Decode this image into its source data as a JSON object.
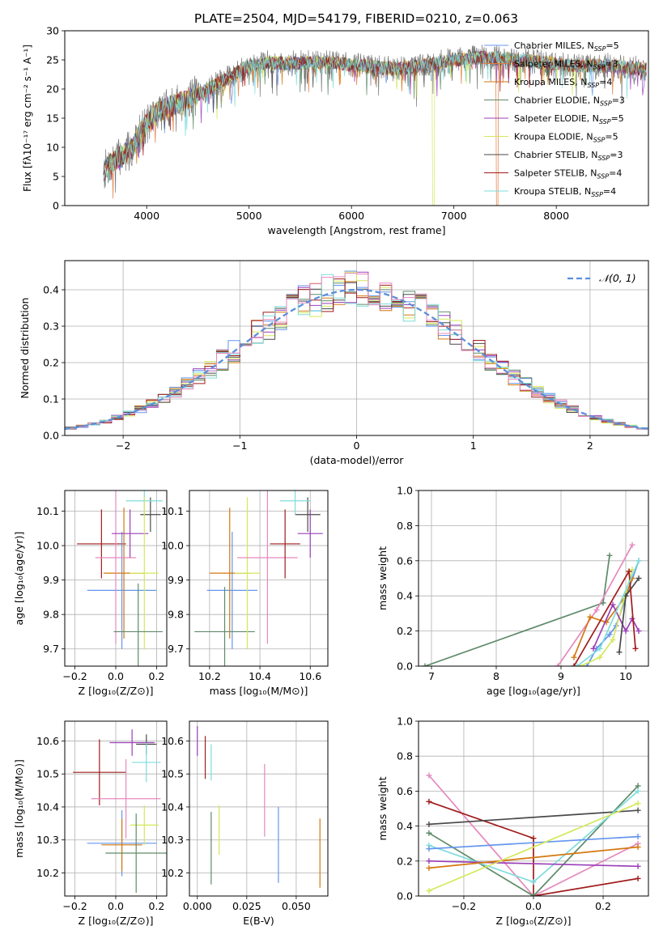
{
  "title": "PLATE=2504, MJD=54179, FIBERID=0210, z=0.063",
  "colors": {
    "Chabrier MILES": "#6495ed",
    "Salpeter MILES": "#e07b3c",
    "Kroupa MILES": "#d4780f",
    "Chabrier ELODIE": "#5f8a68",
    "Salpeter ELODIE": "#9b3fb8",
    "Kroupa ELODIE": "#d4e85a",
    "Chabrier STELIB": "#4a4a4a",
    "Salpeter STELIB": "#a01c1c",
    "Kroupa STELIB": "#7fdcdc",
    "gauss": "#5b8fdb",
    "pink": "#e688bd"
  },
  "chart_data": [
    {
      "type": "line",
      "panel": "spectrum",
      "title": "PLATE=2504, MJD=54179, FIBERID=0210, z=0.063",
      "xlabel": "wavelength [Angstrom, rest frame]",
      "ylabel": "Flux [fλ10⁻¹⁷ erg cm⁻² s⁻¹ A⁻¹]",
      "xlim": [
        3200,
        8900
      ],
      "ylim": [
        0,
        30
      ],
      "xticks": [
        "4000",
        "5000",
        "6000",
        "7000",
        "8000"
      ],
      "yticks": [
        "0",
        "5",
        "10",
        "15",
        "20",
        "25",
        "30"
      ],
      "legend_position": "upper-right",
      "legend": [
        {
          "series": "Chabrier MILES",
          "pre": "Chabrier MILES, N",
          "sub": "SSP",
          "post": "=5"
        },
        {
          "series": "Salpeter MILES",
          "pre": "Salpeter MILES, N",
          "sub": "SSP",
          "post": "=3"
        },
        {
          "series": "Kroupa MILES",
          "pre": "Kroupa MILES, N",
          "sub": "SSP",
          "post": "=4"
        },
        {
          "series": "Chabrier ELODIE",
          "pre": "Chabrier ELODIE, N",
          "sub": "SSP",
          "post": "=3"
        },
        {
          "series": "Salpeter ELODIE",
          "pre": "Salpeter ELODIE, N",
          "sub": "SSP",
          "post": "=5"
        },
        {
          "series": "Kroupa ELODIE",
          "pre": "Kroupa ELODIE, N",
          "sub": "SSP",
          "post": "=5"
        },
        {
          "series": "Chabrier STELIB",
          "pre": "Chabrier STELIB, N",
          "sub": "SSP",
          "post": "=3"
        },
        {
          "series": "Salpeter STELIB",
          "pre": "Salpeter STELIB, N",
          "sub": "SSP",
          "post": "=4"
        },
        {
          "series": "Kroupa STELIB",
          "pre": "Kroupa STELIB, N",
          "sub": "SSP",
          "post": "=4"
        }
      ],
      "continuum": {
        "x": [
          3580,
          3700,
          3850,
          3950,
          4100,
          4300,
          4500,
          4700,
          5000,
          5200,
          5500,
          5800,
          6100,
          6400,
          6700,
          7000,
          7300,
          7600,
          7900,
          8200,
          8500,
          8800
        ],
        "y": [
          6,
          8,
          9.5,
          13,
          16,
          17.5,
          19,
          21,
          24,
          24.5,
          24.5,
          24.5,
          24,
          23.5,
          24,
          25,
          25.5,
          25,
          24.5,
          24,
          24,
          23.5
        ]
      },
      "data_range": [
        3580,
        8880
      ],
      "dips": [
        {
          "series": "Kroupa ELODIE",
          "x": 6800,
          "y": 0
        },
        {
          "series": "Salpeter MILES",
          "x": 7420,
          "y": 0
        }
      ]
    },
    {
      "type": "line",
      "panel": "residuals",
      "xlabel": "(data-model)/error",
      "ylabel": "Normed distribution",
      "xlim": [
        -2.5,
        2.5
      ],
      "ylim": [
        0,
        0.48
      ],
      "xticks": [
        "−2",
        "−1",
        "0",
        "1",
        "2"
      ],
      "yticks": [
        "0.0",
        "0.1",
        "0.2",
        "0.3",
        "0.4"
      ],
      "grid": true,
      "legend_position": "upper-right",
      "legend": [
        {
          "label": "𝒩(0, 1)",
          "series": "gauss",
          "style": "dashed"
        }
      ],
      "bin_width": 0.1,
      "peak_density": 0.4
    },
    {
      "type": "scatter",
      "panel": "age-vs-Z",
      "xlabel": "Z [log₁₀(Z/Z⊙)]",
      "ylabel": "age [log₁₀(age/yr)]",
      "xlim": [
        -0.25,
        0.25
      ],
      "ylim": [
        9.65,
        10.16
      ],
      "xticks": [
        "−0.2",
        "0.0",
        "0.2"
      ],
      "yticks": [
        "9.7",
        "9.8",
        "9.9",
        "10.0",
        "10.1"
      ],
      "grid": true,
      "points": [
        {
          "series": "Salpeter STELIB",
          "x": -0.07,
          "xerr": 0.12,
          "y": 10.005,
          "yerr": 0.1
        },
        {
          "series": "Chabrier MILES",
          "x": 0.03,
          "xerr": 0.17,
          "y": 9.87,
          "yerr": 0.17
        },
        {
          "series": "Kroupa MILES",
          "x": 0.04,
          "xerr": 0.1,
          "y": 9.92,
          "yerr": 0.19
        },
        {
          "series": "pink",
          "x": 0.0,
          "xerr": 0.1,
          "y": 9.965,
          "yerr": 0.25
        },
        {
          "series": "Salpeter ELODIE",
          "x": 0.07,
          "xerr": 0.09,
          "y": 10.035,
          "yerr": 0.07
        },
        {
          "series": "Chabrier STELIB",
          "x": 0.17,
          "xerr": 0.05,
          "y": 10.09,
          "yerr": 0.05
        },
        {
          "series": "Kroupa STELIB",
          "x": 0.14,
          "xerr": 0.09,
          "y": 10.13,
          "yerr": 0.04
        },
        {
          "series": "Kroupa ELODIE",
          "x": 0.14,
          "xerr": 0.07,
          "y": 9.92,
          "yerr": 0.22
        },
        {
          "series": "Chabrier ELODIE",
          "x": 0.11,
          "xerr": 0.12,
          "y": 9.75,
          "yerr": 0.14
        }
      ]
    },
    {
      "type": "scatter",
      "panel": "age-vs-mass",
      "xlabel": "mass [log₁₀(M/M⊙)]",
      "ylabel": "",
      "xlim": [
        10.12,
        10.67
      ],
      "ylim": [
        9.65,
        10.16
      ],
      "xticks": [
        "10.2",
        "10.4",
        "10.6"
      ],
      "yticks": [
        "9.7",
        "9.8",
        "9.9",
        "10.0",
        "10.1"
      ],
      "grid": true,
      "points": [
        {
          "series": "Chabrier MILES",
          "x": 10.29,
          "xerr": 0.1,
          "y": 9.87,
          "yerr": 0.17
        },
        {
          "series": "Kroupa MILES",
          "x": 10.28,
          "xerr": 0.08,
          "y": 9.92,
          "yerr": 0.19
        },
        {
          "series": "Chabrier ELODIE",
          "x": 10.26,
          "xerr": 0.12,
          "y": 9.75,
          "yerr": 0.13
        },
        {
          "series": "Kroupa ELODIE",
          "x": 10.35,
          "xerr": 0.05,
          "y": 9.92,
          "yerr": 0.22
        },
        {
          "series": "pink",
          "x": 10.43,
          "xerr": 0.12,
          "y": 9.965,
          "yerr": 0.25
        },
        {
          "series": "Salpeter STELIB",
          "x": 10.5,
          "xerr": 0.06,
          "y": 10.005,
          "yerr": 0.1
        },
        {
          "series": "Salpeter ELODIE",
          "x": 10.6,
          "xerr": 0.05,
          "y": 10.035,
          "yerr": 0.07
        },
        {
          "series": "Chabrier STELIB",
          "x": 10.59,
          "xerr": 0.05,
          "y": 10.09,
          "yerr": 0.05
        },
        {
          "series": "Kroupa STELIB",
          "x": 10.54,
          "xerr": 0.06,
          "y": 10.13,
          "yerr": 0.04
        }
      ]
    },
    {
      "type": "line",
      "panel": "mass-weight-vs-age",
      "xlabel": "age [log₁₀(age/yr)]",
      "ylabel": "mass weight",
      "xlim": [
        6.8,
        10.35
      ],
      "ylim": [
        0,
        1
      ],
      "xticks": [
        "7",
        "8",
        "9",
        "10"
      ],
      "yticks": [
        "0.0",
        "0.2",
        "0.4",
        "0.6",
        "0.8",
        "1.0"
      ],
      "grid": true,
      "series": [
        {
          "name": "Chabrier ELODIE",
          "points": [
            [
              6.9,
              0.0
            ],
            [
              9.65,
              0.36
            ],
            [
              9.75,
              0.63
            ]
          ]
        },
        {
          "name": "pink",
          "points": [
            [
              8.95,
              0.0
            ],
            [
              9.55,
              0.32
            ],
            [
              10.1,
              0.69
            ]
          ]
        },
        {
          "name": "Chabrier MILES",
          "points": [
            [
              9.4,
              0.0
            ],
            [
              9.55,
              0.1
            ],
            [
              9.75,
              0.18
            ],
            [
              9.85,
              0.23
            ],
            [
              10.2,
              0.6
            ]
          ]
        },
        {
          "name": "Kroupa MILES",
          "points": [
            [
              9.2,
              0.05
            ],
            [
              9.45,
              0.28
            ],
            [
              9.7,
              0.25
            ],
            [
              10.0,
              0.4
            ],
            [
              10.1,
              0.5
            ]
          ]
        },
        {
          "name": "Kroupa ELODIE",
          "points": [
            [
              9.3,
              0.0
            ],
            [
              9.6,
              0.05
            ],
            [
              9.8,
              0.15
            ],
            [
              10.1,
              0.55
            ]
          ]
        },
        {
          "name": "Salpeter ELODIE",
          "points": [
            [
              9.5,
              0.1
            ],
            [
              9.8,
              0.35
            ],
            [
              10.0,
              0.2
            ],
            [
              10.1,
              0.27
            ],
            [
              10.2,
              0.2
            ]
          ]
        },
        {
          "name": "Chabrier STELIB",
          "points": [
            [
              9.9,
              0.08
            ],
            [
              10.0,
              0.4
            ],
            [
              10.2,
              0.5
            ]
          ]
        },
        {
          "name": "Salpeter STELIB",
          "points": [
            [
              9.2,
              0.0
            ],
            [
              10.05,
              0.54
            ],
            [
              10.15,
              0.1
            ]
          ]
        },
        {
          "name": "Kroupa STELIB",
          "points": [
            [
              9.25,
              0.0
            ],
            [
              9.6,
              0.1
            ],
            [
              10.2,
              0.6
            ]
          ]
        }
      ]
    },
    {
      "type": "scatter",
      "panel": "mass-vs-Z",
      "xlabel": "Z [log₁₀(Z/Z⊙)]",
      "ylabel": "mass [log₁₀(M/M⊙)]",
      "xlim": [
        -0.25,
        0.25
      ],
      "ylim": [
        10.13,
        10.66
      ],
      "xticks": [
        "−0.2",
        "0.0",
        "0.2"
      ],
      "yticks": [
        "10.2",
        "10.3",
        "10.4",
        "10.5",
        "10.6"
      ],
      "grid": true,
      "points": [
        {
          "series": "Salpeter STELIB",
          "x": -0.08,
          "xerr": 0.13,
          "y": 10.505,
          "yerr": 0.1
        },
        {
          "series": "Chabrier MILES",
          "x": 0.03,
          "xerr": 0.17,
          "y": 10.29,
          "yerr": 0.1
        },
        {
          "series": "Kroupa MILES",
          "x": 0.03,
          "xerr": 0.1,
          "y": 10.285,
          "yerr": 0.08
        },
        {
          "series": "pink",
          "x": 0.05,
          "xerr": 0.17,
          "y": 10.425,
          "yerr": 0.12
        },
        {
          "series": "Kroupa ELODIE",
          "x": 0.14,
          "xerr": 0.07,
          "y": 10.345,
          "yerr": 0.06
        },
        {
          "series": "Chabrier ELODIE",
          "x": 0.1,
          "xerr": 0.15,
          "y": 10.26,
          "yerr": 0.12
        },
        {
          "series": "Salpeter ELODIE",
          "x": 0.08,
          "xerr": 0.11,
          "y": 10.595,
          "yerr": 0.04
        },
        {
          "series": "Chabrier STELIB",
          "x": 0.15,
          "xerr": 0.05,
          "y": 10.59,
          "yerr": 0.03
        },
        {
          "series": "Kroupa STELIB",
          "x": 0.15,
          "xerr": 0.07,
          "y": 10.535,
          "yerr": 0.06
        }
      ]
    },
    {
      "type": "scatter",
      "panel": "mass-vs-EBV",
      "xlabel": "E(B-V)",
      "ylabel": "",
      "xlim": [
        -0.004,
        0.066
      ],
      "ylim": [
        10.13,
        10.66
      ],
      "xticks": [
        "0.000",
        "0.025",
        "0.050"
      ],
      "yticks": [
        "10.2",
        "10.3",
        "10.4",
        "10.5",
        "10.6"
      ],
      "grid": true,
      "points": [
        {
          "series": "Salpeter ELODIE",
          "x": 0.0,
          "y": 10.6,
          "yerr": 0.045
        },
        {
          "series": "Salpeter STELIB",
          "x": 0.004,
          "y": 10.55,
          "yerr": 0.065
        },
        {
          "series": "Kroupa STELIB",
          "x": 0.007,
          "y": 10.535,
          "yerr": 0.055
        },
        {
          "series": "Chabrier ELODIE",
          "x": 0.007,
          "y": 10.275,
          "yerr": 0.11
        },
        {
          "series": "Kroupa ELODIE",
          "x": 0.011,
          "y": 10.33,
          "yerr": 0.075
        },
        {
          "series": "pink",
          "x": 0.034,
          "y": 10.42,
          "yerr": 0.11
        },
        {
          "series": "Chabrier MILES",
          "x": 0.041,
          "y": 10.285,
          "yerr": 0.115
        },
        {
          "series": "Kroupa MILES",
          "x": 0.062,
          "y": 10.26,
          "yerr": 0.105
        }
      ]
    },
    {
      "type": "line",
      "panel": "mass-weight-vs-Z",
      "xlabel": "Z [log₁₀(Z/Z⊙)]",
      "ylabel": "mass weight",
      "xlim": [
        -0.33,
        0.33
      ],
      "ylim": [
        0,
        1
      ],
      "xticks": [
        "−0.2",
        "0.0",
        "0.2"
      ],
      "yticks": [
        "0.0",
        "0.2",
        "0.4",
        "0.6",
        "0.8",
        "1.0"
      ],
      "grid": true,
      "series": [
        {
          "name": "pink",
          "points": [
            [
              -0.3,
              0.69
            ],
            [
              0.0,
              0.0
            ],
            [
              0.3,
              0.3
            ]
          ]
        },
        {
          "name": "Salpeter STELIB",
          "points": [
            [
              -0.3,
              0.54
            ],
            [
              0.0,
              0.33
            ],
            [
              0.0,
              0.0
            ],
            [
              0.3,
              0.1
            ]
          ]
        },
        {
          "name": "Chabrier STELIB",
          "points": [
            [
              -0.3,
              0.41
            ],
            [
              0.3,
              0.49
            ]
          ]
        },
        {
          "name": "Chabrier ELODIE",
          "points": [
            [
              -0.3,
              0.36
            ],
            [
              0.0,
              0.0
            ],
            [
              0.3,
              0.63
            ]
          ]
        },
        {
          "name": "Kroupa STELIB",
          "points": [
            [
              -0.3,
              0.29
            ],
            [
              0.0,
              0.08
            ],
            [
              0.3,
              0.6
            ]
          ]
        },
        {
          "name": "Chabrier MILES",
          "points": [
            [
              -0.3,
              0.27
            ],
            [
              0.3,
              0.34
            ]
          ]
        },
        {
          "name": "Salpeter ELODIE",
          "points": [
            [
              -0.3,
              0.2
            ],
            [
              0.3,
              0.17
            ]
          ]
        },
        {
          "name": "Kroupa MILES",
          "points": [
            [
              -0.3,
              0.16
            ],
            [
              0.3,
              0.28
            ]
          ]
        },
        {
          "name": "Kroupa ELODIE",
          "points": [
            [
              -0.3,
              0.03
            ],
            [
              0.3,
              0.53
            ]
          ]
        }
      ]
    }
  ]
}
